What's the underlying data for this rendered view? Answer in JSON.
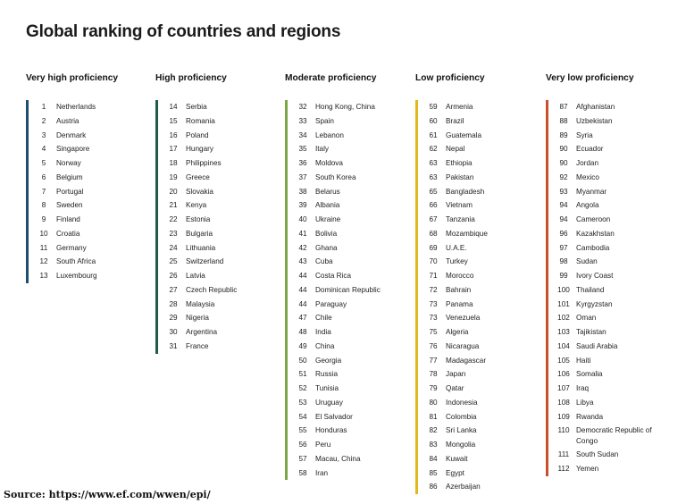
{
  "title": "Global ranking of countries and regions",
  "source": "Source: https://www.ef.com/wwen/epi/",
  "colors": {
    "very_high": "#1f4e6e",
    "high": "#1f5c4a",
    "moderate": "#7aa648",
    "low": "#e0b91c",
    "very_low": "#c8502a"
  },
  "columns": [
    {
      "header": "Very high proficiency",
      "entries": [
        {
          "rank": "1",
          "name": "Netherlands"
        },
        {
          "rank": "2",
          "name": "Austria"
        },
        {
          "rank": "3",
          "name": "Denmark"
        },
        {
          "rank": "4",
          "name": "Singapore"
        },
        {
          "rank": "5",
          "name": "Norway"
        },
        {
          "rank": "6",
          "name": "Belgium"
        },
        {
          "rank": "7",
          "name": "Portugal"
        },
        {
          "rank": "8",
          "name": "Sweden"
        },
        {
          "rank": "9",
          "name": "Finland"
        },
        {
          "rank": "10",
          "name": "Croatia"
        },
        {
          "rank": "11",
          "name": "Germany"
        },
        {
          "rank": "12",
          "name": "South Africa"
        },
        {
          "rank": "13",
          "name": "Luxembourg"
        }
      ]
    },
    {
      "header": "High proficiency",
      "entries": [
        {
          "rank": "14",
          "name": "Serbia"
        },
        {
          "rank": "15",
          "name": "Romania"
        },
        {
          "rank": "16",
          "name": "Poland"
        },
        {
          "rank": "17",
          "name": "Hungary"
        },
        {
          "rank": "18",
          "name": "Philippines"
        },
        {
          "rank": "19",
          "name": "Greece"
        },
        {
          "rank": "20",
          "name": "Slovakia"
        },
        {
          "rank": "21",
          "name": "Kenya"
        },
        {
          "rank": "22",
          "name": "Estonia"
        },
        {
          "rank": "23",
          "name": "Bulgaria"
        },
        {
          "rank": "24",
          "name": "Lithuania"
        },
        {
          "rank": "25",
          "name": "Switzerland"
        },
        {
          "rank": "26",
          "name": "Latvia"
        },
        {
          "rank": "27",
          "name": "Czech Republic"
        },
        {
          "rank": "28",
          "name": "Malaysia"
        },
        {
          "rank": "29",
          "name": "Nigeria"
        },
        {
          "rank": "30",
          "name": "Argentina"
        },
        {
          "rank": "31",
          "name": "France"
        }
      ]
    },
    {
      "header": "Moderate proficiency",
      "entries": [
        {
          "rank": "32",
          "name": "Hong Kong, China"
        },
        {
          "rank": "33",
          "name": "Spain"
        },
        {
          "rank": "34",
          "name": "Lebanon"
        },
        {
          "rank": "35",
          "name": "Italy"
        },
        {
          "rank": "36",
          "name": "Moldova"
        },
        {
          "rank": "37",
          "name": "South Korea"
        },
        {
          "rank": "38",
          "name": "Belarus"
        },
        {
          "rank": "39",
          "name": "Albania"
        },
        {
          "rank": "40",
          "name": "Ukraine"
        },
        {
          "rank": "41",
          "name": "Bolivia"
        },
        {
          "rank": "42",
          "name": "Ghana"
        },
        {
          "rank": "43",
          "name": "Cuba"
        },
        {
          "rank": "44",
          "name": "Costa Rica"
        },
        {
          "rank": "44",
          "name": "Dominican Republic"
        },
        {
          "rank": "44",
          "name": "Paraguay"
        },
        {
          "rank": "47",
          "name": "Chile"
        },
        {
          "rank": "48",
          "name": "India"
        },
        {
          "rank": "49",
          "name": "China"
        },
        {
          "rank": "50",
          "name": "Georgia"
        },
        {
          "rank": "51",
          "name": "Russia"
        },
        {
          "rank": "52",
          "name": "Tunisia"
        },
        {
          "rank": "53",
          "name": "Uruguay"
        },
        {
          "rank": "54",
          "name": "El Salvador"
        },
        {
          "rank": "55",
          "name": "Honduras"
        },
        {
          "rank": "56",
          "name": "Peru"
        },
        {
          "rank": "57",
          "name": "Macau, China"
        },
        {
          "rank": "58",
          "name": "Iran"
        }
      ]
    },
    {
      "header": "Low proficiency",
      "entries": [
        {
          "rank": "59",
          "name": "Armenia"
        },
        {
          "rank": "60",
          "name": "Brazil"
        },
        {
          "rank": "61",
          "name": "Guatemala"
        },
        {
          "rank": "62",
          "name": "Nepal"
        },
        {
          "rank": "63",
          "name": "Ethiopia"
        },
        {
          "rank": "63",
          "name": "Pakistan"
        },
        {
          "rank": "65",
          "name": "Bangladesh"
        },
        {
          "rank": "66",
          "name": "Vietnam"
        },
        {
          "rank": "67",
          "name": "Tanzania"
        },
        {
          "rank": "68",
          "name": "Mozambique"
        },
        {
          "rank": "69",
          "name": "U.A.E."
        },
        {
          "rank": "70",
          "name": "Turkey"
        },
        {
          "rank": "71",
          "name": "Morocco"
        },
        {
          "rank": "72",
          "name": "Bahrain"
        },
        {
          "rank": "73",
          "name": "Panama"
        },
        {
          "rank": "73",
          "name": "Venezuela"
        },
        {
          "rank": "75",
          "name": "Algeria"
        },
        {
          "rank": "76",
          "name": "Nicaragua"
        },
        {
          "rank": "77",
          "name": "Madagascar"
        },
        {
          "rank": "78",
          "name": "Japan"
        },
        {
          "rank": "79",
          "name": "Qatar"
        },
        {
          "rank": "80",
          "name": "Indonesia"
        },
        {
          "rank": "81",
          "name": "Colombia"
        },
        {
          "rank": "82",
          "name": "Sri Lanka"
        },
        {
          "rank": "83",
          "name": "Mongolia"
        },
        {
          "rank": "84",
          "name": "Kuwait"
        },
        {
          "rank": "85",
          "name": "Egypt"
        },
        {
          "rank": "86",
          "name": "Azerbaijan"
        }
      ]
    },
    {
      "header": "Very low proficiency",
      "entries": [
        {
          "rank": "87",
          "name": "Afghanistan"
        },
        {
          "rank": "88",
          "name": "Uzbekistan"
        },
        {
          "rank": "89",
          "name": "Syria"
        },
        {
          "rank": "90",
          "name": "Ecuador"
        },
        {
          "rank": "90",
          "name": "Jordan"
        },
        {
          "rank": "92",
          "name": "Mexico"
        },
        {
          "rank": "93",
          "name": "Myanmar"
        },
        {
          "rank": "94",
          "name": "Angola"
        },
        {
          "rank": "94",
          "name": "Cameroon"
        },
        {
          "rank": "96",
          "name": "Kazakhstan"
        },
        {
          "rank": "97",
          "name": "Cambodia"
        },
        {
          "rank": "98",
          "name": "Sudan"
        },
        {
          "rank": "99",
          "name": "Ivory Coast"
        },
        {
          "rank": "100",
          "name": "Thailand"
        },
        {
          "rank": "101",
          "name": "Kyrgyzstan"
        },
        {
          "rank": "102",
          "name": "Oman"
        },
        {
          "rank": "103",
          "name": "Tajikistan"
        },
        {
          "rank": "104",
          "name": "Saudi Arabia"
        },
        {
          "rank": "105",
          "name": "Haiti"
        },
        {
          "rank": "106",
          "name": "Somalia"
        },
        {
          "rank": "107",
          "name": "Iraq"
        },
        {
          "rank": "108",
          "name": "Libya"
        },
        {
          "rank": "109",
          "name": "Rwanda"
        },
        {
          "rank": "110",
          "name": "Democratic Republic of Congo",
          "multiline": true
        },
        {
          "rank": "111",
          "name": "South Sudan"
        },
        {
          "rank": "112",
          "name": "Yemen"
        }
      ]
    }
  ]
}
